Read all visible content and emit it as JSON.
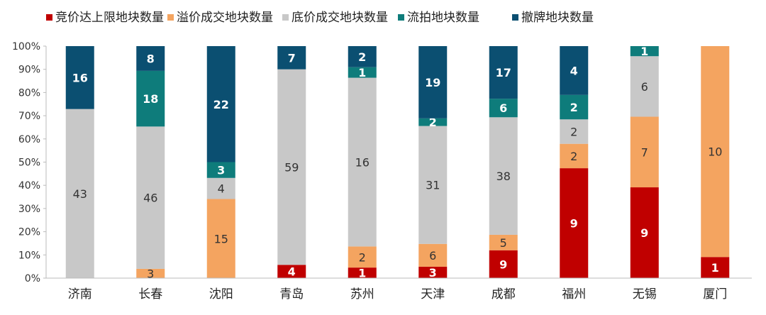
{
  "chart_data": {
    "type": "bar",
    "stacked": "percent",
    "categories": [
      "济南",
      "长春",
      "沈阳",
      "青岛",
      "苏州",
      "天津",
      "成都",
      "福州",
      "无锡",
      "厦门"
    ],
    "series": [
      {
        "name": "竞价达上限地块数量",
        "color": "#C00000",
        "values": [
          0,
          0,
          0,
          4,
          1,
          3,
          9,
          9,
          9,
          1
        ]
      },
      {
        "name": "溢价成交地块数量",
        "color": "#F4A460",
        "values": [
          0,
          3,
          15,
          0,
          2,
          6,
          5,
          2,
          7,
          10
        ]
      },
      {
        "name": "底价成交地块数量",
        "color": "#C8C8C8",
        "values": [
          43,
          46,
          4,
          59,
          16,
          31,
          38,
          2,
          6,
          0
        ]
      },
      {
        "name": "流拍地块数量",
        "color": "#0E7C7B",
        "values": [
          0,
          18,
          3,
          0,
          1,
          2,
          6,
          2,
          1,
          0
        ]
      },
      {
        "name": "撤牌地块数量",
        "color": "#0B4F71",
        "values": [
          16,
          8,
          22,
          7,
          2,
          19,
          17,
          4,
          0,
          0
        ]
      }
    ],
    "ylim": [
      0,
      100
    ],
    "yticks": [
      "0%",
      "10%",
      "20%",
      "30%",
      "40%",
      "50%",
      "60%",
      "70%",
      "80%",
      "90%",
      "100%"
    ],
    "legend": "top",
    "grid": false
  }
}
